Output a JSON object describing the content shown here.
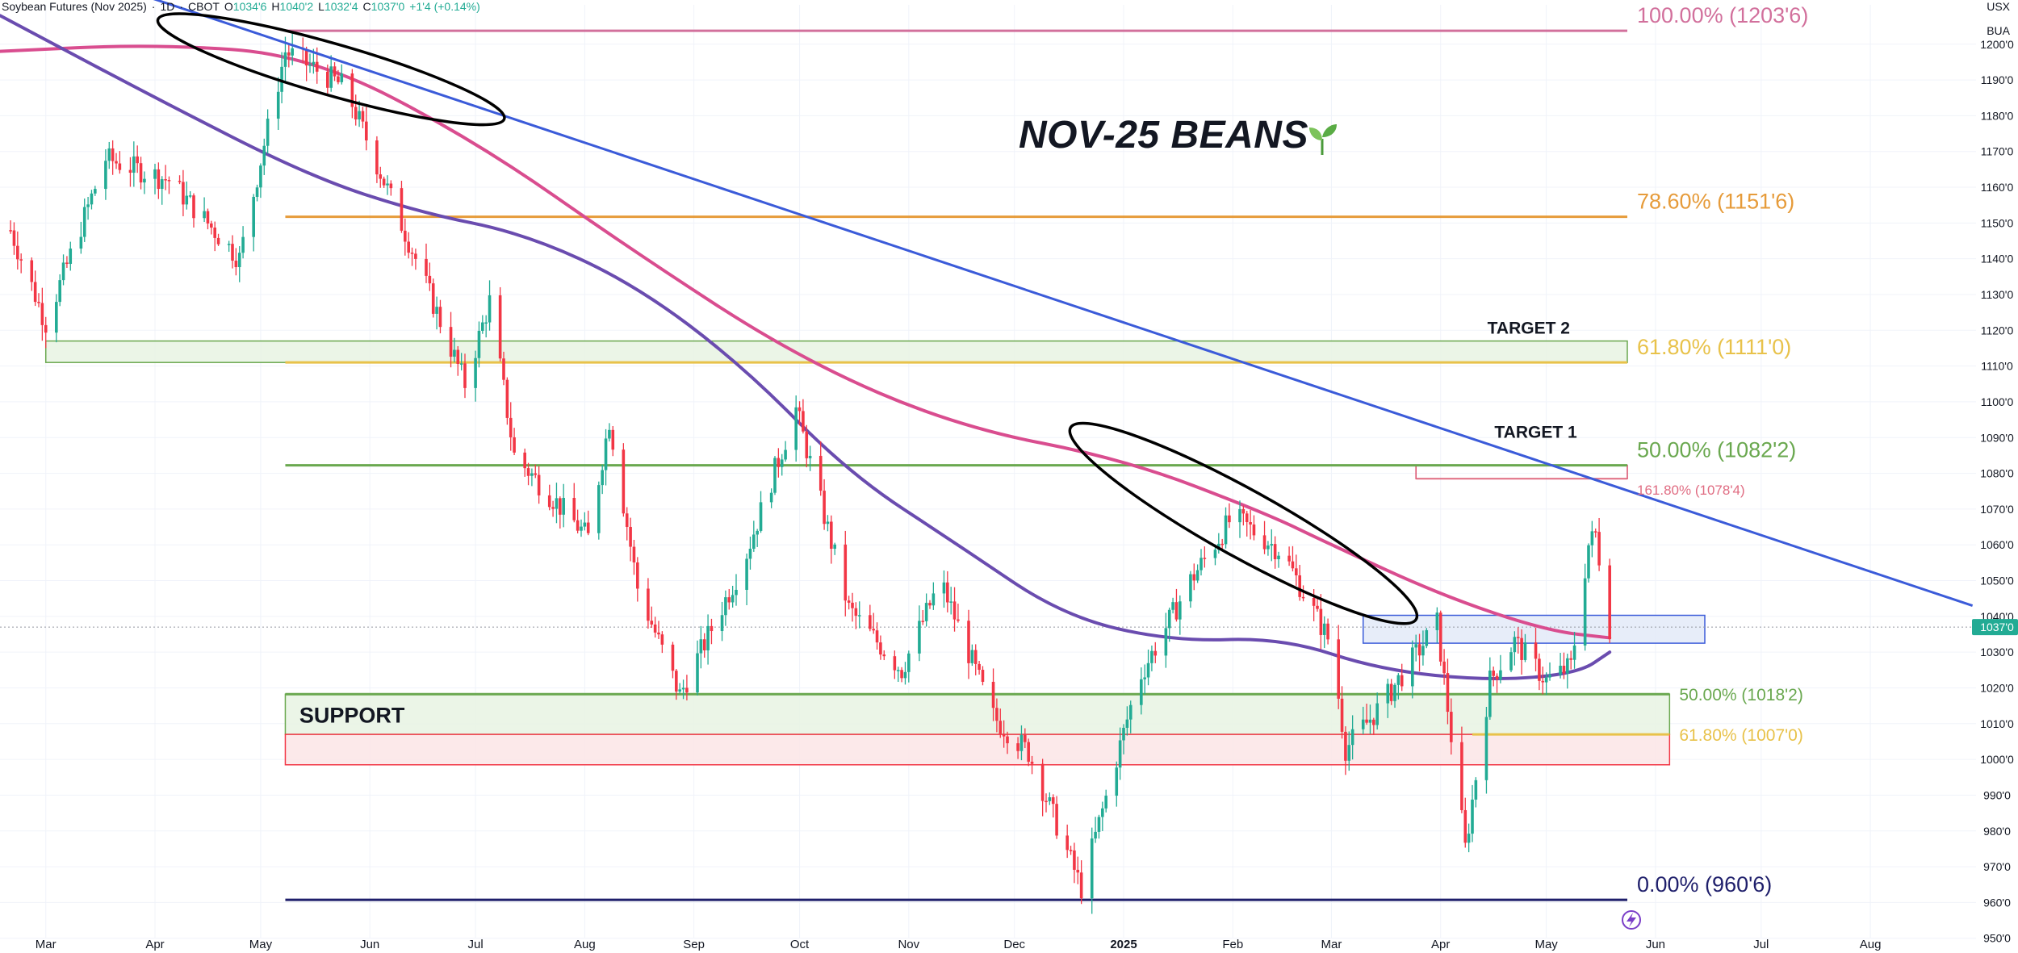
{
  "header": {
    "symbol": "Soybean Futures (Nov 2025)",
    "interval": "1D",
    "exchange": "CBOT",
    "open_label": "O",
    "open": "1034'6",
    "high_label": "H",
    "high": "1040'2",
    "low_label": "L",
    "low": "1032'4",
    "close_label": "C",
    "close": "1037'0",
    "change": "+1'4 (+0.14%)"
  },
  "axis_units": {
    "currency": "USX",
    "unit": "BUA"
  },
  "current_price_label": "1037'0",
  "colors": {
    "up": "#22ab94",
    "down": "#f23645",
    "trendline": "#3b5bd9",
    "ma_fast": "#6a4caf",
    "ma_slow": "#d94d8f",
    "fib_100": "#d2709c",
    "fib_786": "#e69b3a",
    "fib_618": "#e8c24a",
    "fib_50": "#6aa84f",
    "fib_0": "#1f1f6b",
    "ext_1618": "#e06c82",
    "support_fill": "#e7f3e3",
    "resist_fill": "#fbe5e6"
  },
  "chart_data": {
    "type": "candlestick",
    "title": "NOV-25 BEANS",
    "y_axis": {
      "ticks": [
        "1200'0",
        "1190'0",
        "1180'0",
        "1170'0",
        "1160'0",
        "1150'0",
        "1140'0",
        "1130'0",
        "1120'0",
        "1110'0",
        "1100'0",
        "1090'0",
        "1080'0",
        "1070'0",
        "1060'0",
        "1050'0",
        "1040'0",
        "1030'0",
        "1020'0",
        "1010'0",
        "1000'0",
        "990'0",
        "980'0",
        "970'0",
        "960'0",
        "950'0"
      ],
      "range": [
        947,
        1211
      ]
    },
    "x_axis": {
      "ticks": [
        "Mar",
        "Apr",
        "May",
        "Jun",
        "Jul",
        "Aug",
        "Sep",
        "Oct",
        "Nov",
        "Dec",
        "2025",
        "Feb",
        "Mar",
        "Apr",
        "May",
        "Jun",
        "Jul",
        "Aug"
      ],
      "range": [
        "2024-02-17",
        "2025-08-31"
      ]
    },
    "candles_anchor": [
      [
        "2024-02-20",
        1148
      ],
      [
        "2024-03-01",
        1122
      ],
      [
        "2024-03-18",
        1168
      ],
      [
        "2024-04-05",
        1162
      ],
      [
        "2024-04-25",
        1140
      ],
      [
        "2024-05-02",
        1172
      ],
      [
        "2024-05-08",
        1198
      ],
      [
        "2024-05-25",
        1188
      ],
      [
        "2024-06-12",
        1145
      ],
      [
        "2024-06-28",
        1105
      ],
      [
        "2024-07-05",
        1128
      ],
      [
        "2024-07-12",
        1085
      ],
      [
        "2024-08-02",
        1062
      ],
      [
        "2024-08-08",
        1095
      ],
      [
        "2024-08-16",
        1048
      ],
      [
        "2024-08-28",
        1018
      ],
      [
        "2024-09-15",
        1055
      ],
      [
        "2024-09-30",
        1098
      ],
      [
        "2024-10-15",
        1042
      ],
      [
        "2024-10-30",
        1025
      ],
      [
        "2024-11-10",
        1050
      ],
      [
        "2024-11-25",
        1012
      ],
      [
        "2024-12-05",
        1002
      ],
      [
        "2024-12-20",
        964
      ],
      [
        "2025-01-05",
        1022
      ],
      [
        "2025-01-20",
        1050
      ],
      [
        "2025-02-01",
        1068
      ],
      [
        "2025-02-15",
        1058
      ],
      [
        "2025-03-01",
        1032
      ],
      [
        "2025-03-05",
        1003
      ],
      [
        "2025-03-15",
        1015
      ],
      [
        "2025-03-31",
        1038
      ],
      [
        "2025-04-08",
        975
      ],
      [
        "2025-04-15",
        1022
      ],
      [
        "2025-04-22",
        1033
      ],
      [
        "2025-05-01",
        1022
      ],
      [
        "2025-05-08",
        1026
      ],
      [
        "2025-05-13",
        1060
      ],
      [
        "2025-05-15",
        1063
      ],
      [
        "2025-05-19",
        1037
      ]
    ],
    "moving_averages": [
      {
        "color": "#d94d8f",
        "points": [
          [
            "2024-02-17",
            1198
          ],
          [
            "2024-04-01",
            1200
          ],
          [
            "2024-05-15",
            1197
          ],
          [
            "2024-07-01",
            1173
          ],
          [
            "2024-08-15",
            1142
          ],
          [
            "2024-10-01",
            1112
          ],
          [
            "2024-11-15",
            1093
          ],
          [
            "2025-01-01",
            1084
          ],
          [
            "2025-02-10",
            1069
          ],
          [
            "2025-03-01",
            1060
          ],
          [
            "2025-04-01",
            1046
          ],
          [
            "2025-05-01",
            1036
          ],
          [
            "2025-05-19",
            1034
          ]
        ]
      },
      {
        "color": "#6a4caf",
        "points": [
          [
            "2024-02-17",
            1208
          ],
          [
            "2024-04-01",
            1185
          ],
          [
            "2024-05-15",
            1163
          ],
          [
            "2024-06-15",
            1153
          ],
          [
            "2024-07-15",
            1147
          ],
          [
            "2024-08-15",
            1133
          ],
          [
            "2024-09-15",
            1110
          ],
          [
            "2024-10-15",
            1080
          ],
          [
            "2024-11-15",
            1060
          ],
          [
            "2024-12-15",
            1040
          ],
          [
            "2025-01-15",
            1033
          ],
          [
            "2025-02-15",
            1034
          ],
          [
            "2025-03-15",
            1025
          ],
          [
            "2025-04-15",
            1022
          ],
          [
            "2025-05-10",
            1024
          ],
          [
            "2025-05-19",
            1030
          ]
        ]
      }
    ],
    "trendline": {
      "start": [
        "2024-02-17",
        1227
      ],
      "end": [
        "2025-08-30",
        1043
      ]
    },
    "fib_levels": [
      {
        "label": "100.00% (1203'6)",
        "price": 1203.75,
        "color": "#d2709c",
        "from": "2024-05-08",
        "to": "2025-05-24"
      },
      {
        "label": "78.60% (1151'6)",
        "price": 1151.75,
        "color": "#e69b3a",
        "from": "2024-05-08",
        "to": "2025-05-24"
      },
      {
        "label": "61.80% (1111'0)",
        "price": 1111.0,
        "color": "#e8c24a",
        "from": "2024-05-08",
        "to": "2025-05-24"
      },
      {
        "label": "50.00% (1082'2)",
        "price": 1082.25,
        "color": "#6aa84f",
        "from": "2024-05-08",
        "to": "2025-05-24"
      },
      {
        "label": "0.00% (960'6)",
        "price": 960.75,
        "color": "#1f1f6b",
        "from": "2024-05-08",
        "to": "2025-05-24"
      }
    ],
    "support_levels": [
      {
        "label": "50.00% (1018'2)",
        "price": 1018.25,
        "color": "#6aa84f",
        "from": "2024-05-08",
        "to": "2025-06-05"
      },
      {
        "label": "61.80% (1007'0)",
        "price": 1007.0,
        "color": "#e8c24a",
        "from": "2025-04-10",
        "to": "2025-06-05"
      }
    ],
    "extension": {
      "label": "161.80% (1078'4)",
      "price": 1078.5,
      "color": "#e06c82",
      "from": "2025-03-25",
      "to": "2025-05-24"
    },
    "zones": [
      {
        "name": "target2",
        "price_top": 1117,
        "price_bottom": 1111,
        "from": "2024-03-01",
        "to": "2025-05-24",
        "fill": "#e7f3e3",
        "stroke": "#6aa84f"
      },
      {
        "name": "support-green",
        "price_top": 1018.25,
        "price_bottom": 1007,
        "from": "2024-05-08",
        "to": "2025-06-05",
        "fill": "#e7f3e3",
        "stroke": "#6aa84f"
      },
      {
        "name": "support-red",
        "price_top": 1007,
        "price_bottom": 998.5,
        "from": "2024-05-08",
        "to": "2025-06-05",
        "fill": "#fbe5e6",
        "stroke": "#f23645"
      },
      {
        "name": "current-box",
        "price_top": 1040.3,
        "price_bottom": 1032.5,
        "from": "2025-03-10",
        "to": "2025-06-15",
        "fill": "#e3eaf8",
        "stroke": "#3b5bd9"
      },
      {
        "name": "target1-box",
        "price_top": 1082.25,
        "price_bottom": 1078.5,
        "from": "2025-03-25",
        "to": "2025-05-24",
        "fill": "none",
        "stroke": "#d94d6a"
      }
    ],
    "annotations": [
      {
        "text": "TARGET 2",
        "date": "2025-04-26",
        "price": 1119
      },
      {
        "text": "TARGET 1",
        "date": "2025-04-28",
        "price": 1090
      },
      {
        "text": "SUPPORT",
        "date": "2024-05-12",
        "price": 1012.5
      }
    ],
    "ellipses": [
      {
        "center": [
          "2024-05-21",
          1193
        ],
        "rx_days": 15.5,
        "ry_price": 7.2,
        "rotation": 16
      },
      {
        "center": [
          "2025-02-04",
          1066
        ],
        "rx_days": 17,
        "ry_price": 9.4,
        "rotation": 29
      }
    ]
  },
  "footer": {
    "lightning_icon": "lightning-bolt-icon"
  }
}
